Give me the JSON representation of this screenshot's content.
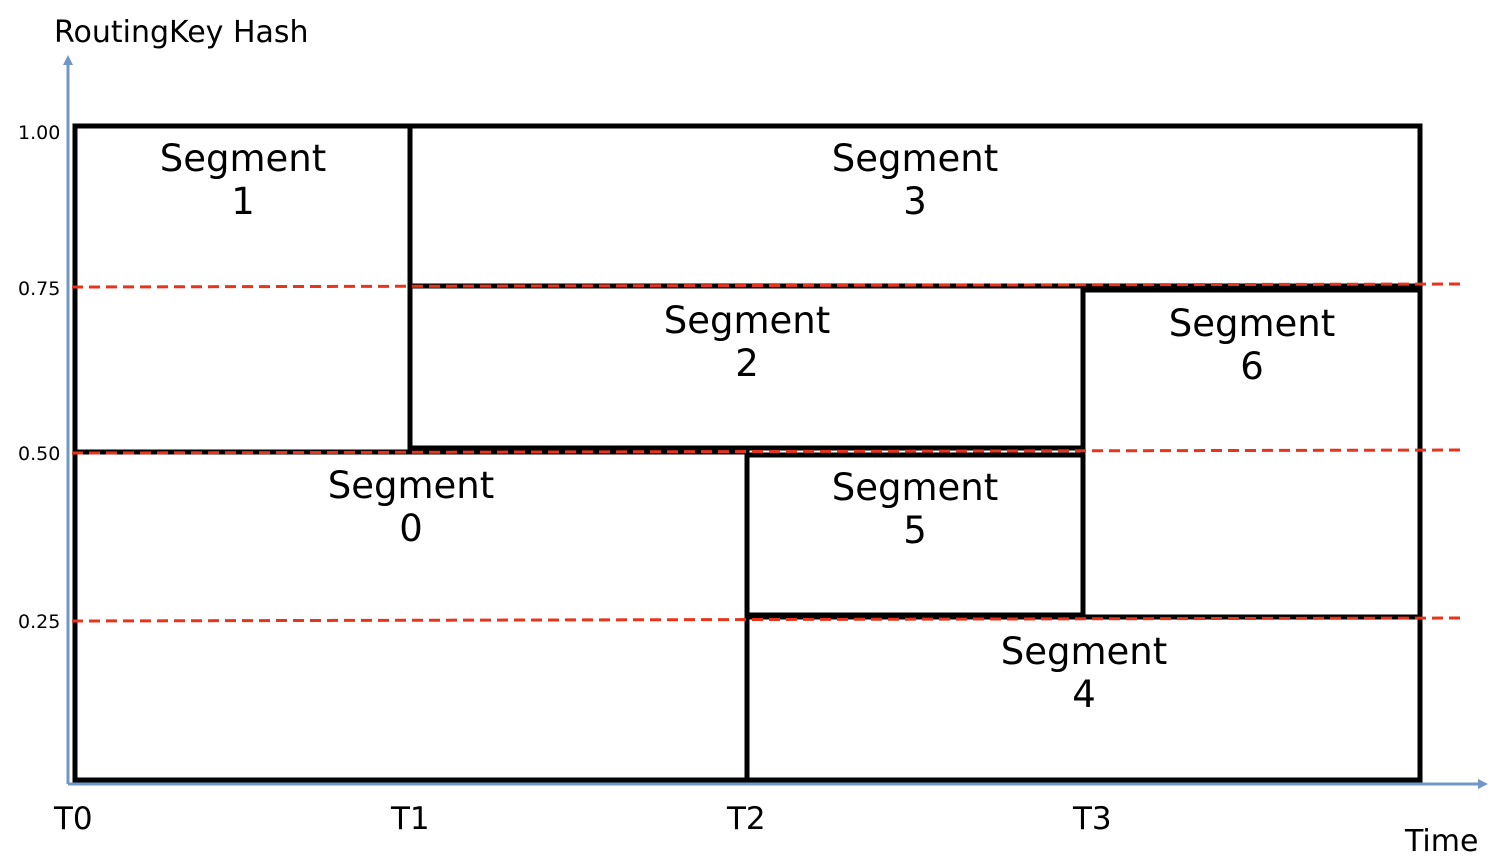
{
  "axes": {
    "y_title": "RoutingKey Hash",
    "x_title": "Time",
    "y_ticks": [
      "1.00",
      "0.75",
      "0.50",
      "0.25"
    ],
    "x_ticks": [
      "T0",
      "T1",
      "T2",
      "T3"
    ],
    "axis_color": "#7196c9",
    "split_line_color": "#e8341c"
  },
  "segments": [
    {
      "id": "1",
      "word": "Segment",
      "num": "1",
      "t_start": "T0",
      "t_end": "T1",
      "hash_low": 0.5,
      "hash_high": 1.0
    },
    {
      "id": "3",
      "word": "Segment",
      "num": "3",
      "t_start": "T1",
      "t_end": "end",
      "hash_low": 0.75,
      "hash_high": 1.0
    },
    {
      "id": "2",
      "word": "Segment",
      "num": "2",
      "t_start": "T1",
      "t_end": "T3",
      "hash_low": 0.5,
      "hash_high": 0.75
    },
    {
      "id": "6",
      "word": "Segment",
      "num": "6",
      "t_start": "T3",
      "t_end": "end",
      "hash_low": 0.25,
      "hash_high": 0.75
    },
    {
      "id": "0",
      "word": "Segment",
      "num": "0",
      "t_start": "T0",
      "t_end": "T2",
      "hash_low": 0.0,
      "hash_high": 0.5
    },
    {
      "id": "5",
      "word": "Segment",
      "num": "5",
      "t_start": "T2",
      "t_end": "T3",
      "hash_low": 0.25,
      "hash_high": 0.5
    },
    {
      "id": "4",
      "word": "Segment",
      "num": "4",
      "t_start": "T2",
      "t_end": "end",
      "hash_low": 0.0,
      "hash_high": 0.25
    }
  ]
}
